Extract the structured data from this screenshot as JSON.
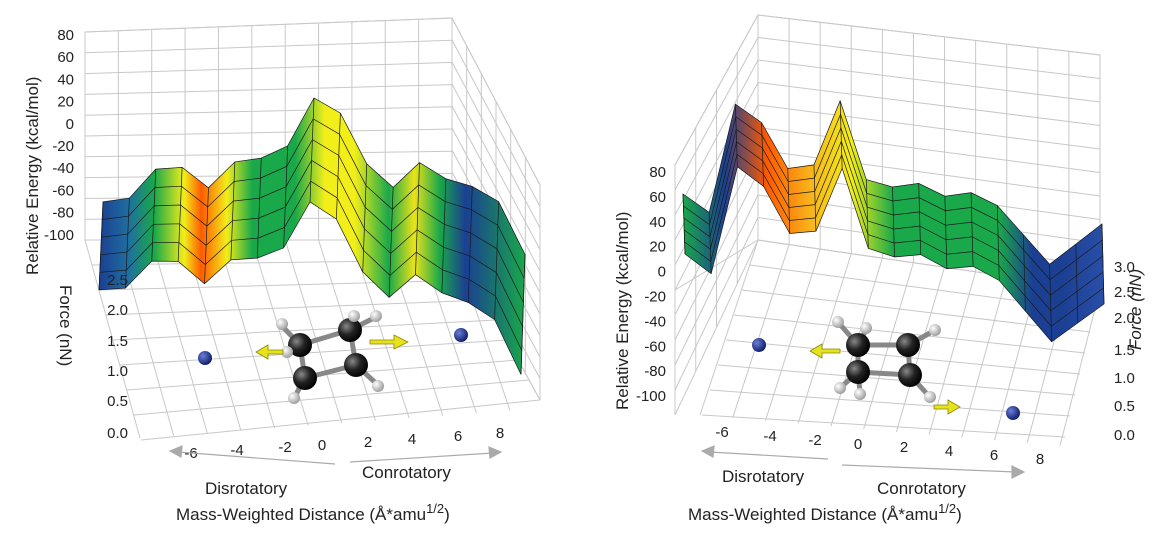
{
  "chart_data": [
    {
      "type": "surface",
      "panel": "left",
      "energy_axis_label": "Relative Energy (kcal/mol)",
      "energy_ticks": [
        "80",
        "60",
        "40",
        "20",
        "0",
        "-20",
        "-40",
        "-60",
        "-80",
        "-100"
      ],
      "force_axis_label": "Force (nN)",
      "force_ticks": [
        "2.5",
        "2.0",
        "1.5",
        "1.0",
        "0.5",
        "0.0"
      ],
      "distance_axis_label": "Mass-Weighted Distance (Å*amu",
      "distance_axis_exponent": "1/2",
      "distance_axis_close": ")",
      "distance_ticks": [
        "-6",
        "-4",
        "-2",
        "0",
        "2",
        "4",
        "6",
        "8"
      ],
      "direction_labels": {
        "negative": "Disrotatory",
        "positive": "Conrotatory"
      },
      "xlim": [
        -8,
        8
      ],
      "energy_lim": [
        -100,
        80
      ],
      "force_lim": [
        0,
        2.5
      ],
      "profile": {
        "x": [
          -8,
          -7,
          -6,
          -5,
          -4,
          -3,
          -2,
          -1,
          0,
          1,
          2,
          3,
          4,
          5,
          6,
          7,
          8
        ],
        "energy": [
          -78,
          -72,
          -42,
          -38,
          -55,
          -28,
          -22,
          -8,
          40,
          28,
          -18,
          -38,
          -12,
          -25,
          -30,
          -42,
          -90
        ]
      },
      "reactant_minima_x": [
        -5.5,
        6.5
      ],
      "colors": {
        "low": "#1b3f93",
        "mid": "#19a84a",
        "high": "#f2ee1a",
        "peak": "#ff5a00",
        "arrow": "#e7e21e",
        "sphere": "#1a2f8c"
      }
    },
    {
      "type": "surface",
      "panel": "right",
      "energy_axis_label": "Relative Energy (kcal/mol)",
      "energy_ticks": [
        "80",
        "60",
        "40",
        "20",
        "0",
        "-20",
        "-40",
        "-60",
        "-80",
        "-100"
      ],
      "force_axis_label": "Force (nN)",
      "force_ticks": [
        "3.0",
        "2.5",
        "2.0",
        "1.5",
        "1.0",
        "0.5",
        "0.0"
      ],
      "distance_axis_label": "Mass-Weighted Distance (Å*amu",
      "distance_axis_exponent": "1/2",
      "distance_axis_close": ")",
      "distance_ticks": [
        "-6",
        "-4",
        "-2",
        "0",
        "2",
        "4",
        "6",
        "8"
      ],
      "direction_labels": {
        "negative": "Disrotatory",
        "positive": "Conrotatory"
      },
      "xlim": [
        -8,
        8
      ],
      "energy_lim": [
        -100,
        80
      ],
      "force_lim": [
        0,
        3.0
      ],
      "profile": {
        "x": [
          -8,
          -7,
          -6,
          -5,
          -4,
          -3,
          -2,
          -1,
          0,
          1,
          2,
          3,
          4,
          5,
          6,
          7,
          8
        ],
        "energy": [
          -40,
          -55,
          45,
          30,
          -10,
          -5,
          55,
          -15,
          -20,
          -15,
          -25,
          -20,
          -30,
          -55,
          -80,
          -60,
          -40
        ]
      },
      "reactant_minima_x": [
        -5.5,
        6.5
      ],
      "colors": {
        "low": "#1b3f93",
        "mid": "#19a84a",
        "high": "#f2ee1a",
        "peak": "#ff5a00",
        "arrow": "#e7e21e",
        "sphere": "#1a2f8c"
      }
    }
  ]
}
